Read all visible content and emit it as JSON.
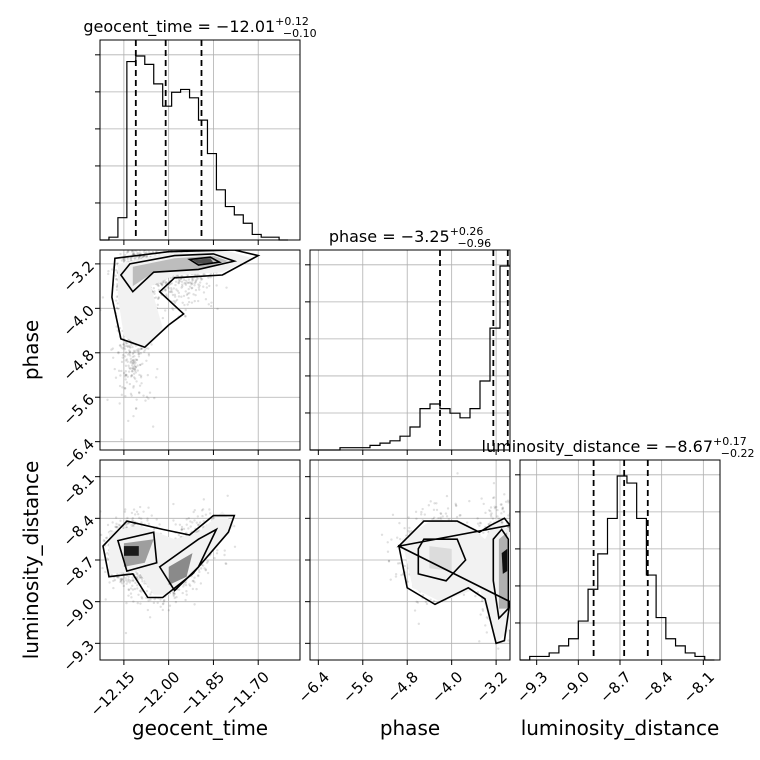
{
  "chart_data": {
    "type": "corner",
    "parameters": [
      "geocent_time",
      "phase",
      "luminosity_distance"
    ],
    "titles": [
      {
        "main": "geocent_time = −12.01",
        "sup": "+0.12",
        "sub": "−0.10"
      },
      {
        "main": "phase = −3.25",
        "sup": "+0.26",
        "sub": "−0.96"
      },
      {
        "main": "luminosity_distance = −8.67",
        "sup": "+0.17",
        "sub": "−0.22"
      }
    ],
    "axis_labels": {
      "x": [
        "geocent_time",
        "phase",
        "luminosity_distance"
      ],
      "y": [
        "phase",
        "luminosity_distance"
      ]
    },
    "ranges": {
      "geocent_time": [
        -12.23,
        -11.56
      ],
      "phase": [
        -6.55,
        -2.95
      ],
      "luminosity_distance": [
        -9.42,
        -7.98
      ]
    },
    "ticks": {
      "geocent_time": [
        -12.15,
        -12.0,
        -11.85,
        -11.7
      ],
      "phase": [
        -6.4,
        -5.6,
        -4.8,
        -4.0,
        -3.2
      ],
      "luminosity_distance": [
        -9.3,
        -9.0,
        -8.7,
        -8.4,
        -8.1
      ]
    },
    "tick_labels": {
      "geocent_time": [
        "−12.15",
        "−12.00",
        "−11.85",
        "−11.70"
      ],
      "phase": [
        "−6.4",
        "−5.6",
        "−4.8",
        "−4.0",
        "−3.2"
      ],
      "luminosity_distance": [
        "−9.3",
        "−9.0",
        "−8.7",
        "−8.4",
        "−8.1"
      ]
    },
    "quantiles": {
      "geocent_time": [
        -12.11,
        -12.01,
        -11.89
      ],
      "phase": [
        -4.21,
        -3.25,
        -2.99
      ],
      "luminosity_distance": [
        -8.89,
        -8.67,
        -8.5
      ]
    },
    "histograms": {
      "geocent_time": {
        "edges": [
          -12.23,
          -12.2,
          -12.17,
          -12.14,
          -12.11,
          -12.08,
          -12.05,
          -12.02,
          -11.99,
          -11.96,
          -11.93,
          -11.9,
          -11.87,
          -11.84,
          -11.81,
          -11.78,
          -11.75,
          -11.72,
          -11.69,
          -11.66,
          -11.63,
          -11.6
        ],
        "counts": [
          0,
          1,
          8,
          64,
          66,
          63,
          56,
          48,
          53,
          54,
          51,
          43,
          31,
          18,
          12,
          9,
          6,
          2,
          1,
          1,
          0
        ]
      },
      "phase": {
        "edges": [
          -6.55,
          -6.37,
          -6.19,
          -6.01,
          -5.83,
          -5.65,
          -5.47,
          -5.29,
          -5.11,
          -4.93,
          -4.75,
          -4.57,
          -4.39,
          -4.21,
          -4.03,
          -3.85,
          -3.67,
          -3.49,
          -3.31,
          -3.13,
          -2.95
        ],
        "counts": [
          0,
          0,
          0,
          1,
          1,
          1,
          2,
          3,
          4,
          6,
          10,
          18,
          20,
          18,
          16,
          14,
          18,
          30,
          53,
          80
        ]
      },
      "luminosity_distance": {
        "edges": [
          -9.42,
          -9.35,
          -9.28,
          -9.21,
          -9.14,
          -9.07,
          -9.0,
          -8.93,
          -8.86,
          -8.79,
          -8.72,
          -8.65,
          -8.58,
          -8.51,
          -8.44,
          -8.37,
          -8.3,
          -8.23,
          -8.16,
          -8.09,
          -8.02
        ],
        "counts": [
          0,
          1,
          1,
          2,
          4,
          6,
          11,
          20,
          30,
          40,
          52,
          50,
          40,
          24,
          12,
          6,
          4,
          2,
          1,
          0
        ]
      }
    },
    "grid": true
  }
}
